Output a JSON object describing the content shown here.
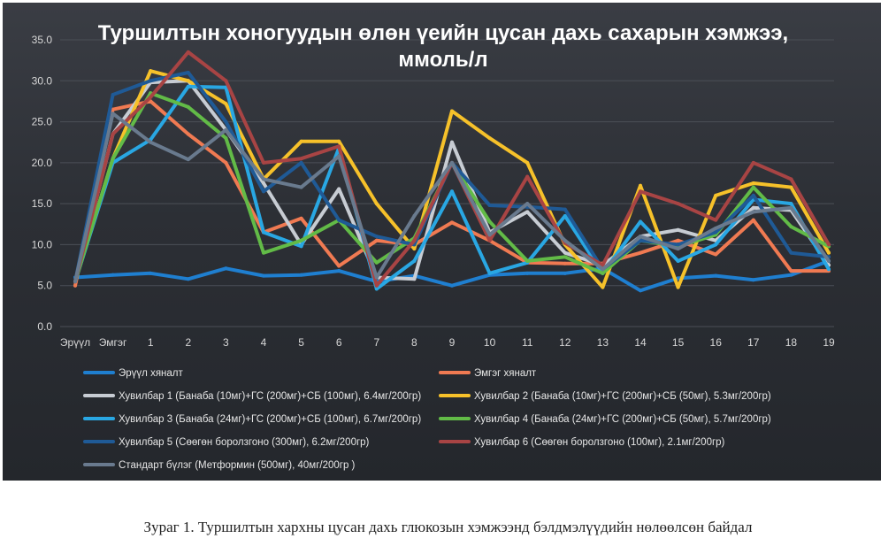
{
  "caption": "Зураг 1. Туршилтын хархны цусан дахь глюкозын хэмжээнд бэлдмэлүүдийн нөлөөлсөн байдал",
  "chart_data": {
    "type": "line",
    "title_line1": "Туршилтын хоногуудын өлөн үеийн цусан дахь сахарын хэмжээ,",
    "title_line2": "ммоль/л",
    "categories": [
      "Эрүүл",
      "Эмгэг",
      "1",
      "2",
      "3",
      "4",
      "5",
      "6",
      "7",
      "8",
      "9",
      "10",
      "11",
      "12",
      "13",
      "14",
      "15",
      "16",
      "17",
      "18",
      "19"
    ],
    "ylim": [
      0,
      35
    ],
    "yticks": [
      "0.0",
      "5.0",
      "10.0",
      "15.0",
      "20.0",
      "25.0",
      "30.0",
      "35.0"
    ],
    "grid": true,
    "legend_position": "bottom",
    "series": [
      {
        "name": "Эрүүл хяналт",
        "color": "#1f7fd0",
        "values": [
          6.0,
          6.3,
          6.5,
          5.8,
          7.1,
          6.2,
          6.3,
          6.8,
          5.5,
          6.2,
          5.0,
          6.3,
          6.5,
          6.5,
          7.1,
          4.4,
          5.9,
          6.2,
          5.7,
          6.3,
          8.0
        ]
      },
      {
        "name": "Эмгэг хяналт",
        "color": "#f07a52",
        "values": [
          5.0,
          26.5,
          27.5,
          23.5,
          20.0,
          11.5,
          13.2,
          7.4,
          10.5,
          10.0,
          12.7,
          10.5,
          7.8,
          7.7,
          7.7,
          9.0,
          10.5,
          8.8,
          13.0,
          6.8,
          6.8
        ]
      },
      {
        "name": "Хувилбар 1 (Банаба (10мг)+ГС (200мг)+СБ (100мг), 6.4мг/200гр)",
        "color": "#c7ccd3",
        "values": [
          5.5,
          23.5,
          29.8,
          30.0,
          24.0,
          17.5,
          10.0,
          16.8,
          6.0,
          5.8,
          22.5,
          11.5,
          14.0,
          9.0,
          7.5,
          11.0,
          11.8,
          10.5,
          14.5,
          14.2,
          7.5
        ]
      },
      {
        "name": "Хувилбар 2 (Банаба (10мг)+ГС (200мг)+СБ (50мг), 5.3мг/200гр)",
        "color": "#f6c12a",
        "values": [
          5.5,
          20.5,
          31.2,
          30.0,
          27.2,
          18.0,
          22.6,
          22.6,
          15.0,
          9.5,
          26.3,
          23.0,
          20.0,
          10.0,
          4.8,
          17.2,
          4.8,
          16.0,
          17.5,
          17.0,
          9.0
        ]
      },
      {
        "name": "Хувилбар 3 (Банаба (24мг)+ГС (200мг)+СБ (100мг), 6.7мг/200гр)",
        "color": "#29a7e3",
        "values": [
          5.5,
          20.0,
          22.8,
          29.3,
          29.2,
          11.5,
          9.8,
          21.8,
          4.6,
          8.0,
          16.5,
          6.5,
          7.8,
          13.5,
          6.5,
          12.8,
          8.0,
          10.0,
          15.5,
          15.0,
          7.0
        ]
      },
      {
        "name": "Хувилбар 4 (Банаба (24мг)+ГС (200мг)+СБ (50мг), 5.7мг/200гр)",
        "color": "#62bb47",
        "values": [
          5.5,
          20.5,
          28.5,
          26.8,
          23.0,
          9.0,
          10.5,
          13.0,
          7.8,
          10.8,
          20.0,
          12.8,
          8.0,
          8.5,
          6.5,
          10.5,
          9.8,
          11.2,
          17.0,
          12.2,
          9.8
        ]
      },
      {
        "name": "Хувилбар 5 (Сөөгөн боролзгоно (300мг), 6.2мг/200гр)",
        "color": "#1f5a96",
        "values": [
          5.5,
          28.3,
          30.0,
          31.0,
          25.0,
          16.5,
          20.0,
          13.0,
          11.0,
          10.0,
          20.0,
          14.8,
          14.6,
          14.3,
          7.0,
          10.5,
          10.0,
          11.5,
          16.0,
          9.0,
          8.5
        ]
      },
      {
        "name": "Хувилбар 6 (Сөөгөн боролзгоно (100мг), 2.1мг/200гр)",
        "color": "#a84444",
        "values": [
          5.5,
          23.5,
          28.0,
          33.5,
          30.0,
          20.0,
          20.5,
          22.0,
          5.0,
          10.5,
          20.0,
          10.5,
          18.3,
          10.2,
          7.5,
          16.5,
          15.0,
          13.0,
          20.0,
          18.0,
          10.0
        ]
      },
      {
        "name": "Стандарт бүлэг  (Метформин (500мг), 40мг/200гр )",
        "color": "#697a8e",
        "values": [
          5.5,
          26.0,
          22.5,
          20.4,
          24.0,
          18.0,
          17.0,
          20.8,
          6.0,
          13.5,
          20.0,
          11.2,
          15.0,
          10.5,
          7.0,
          11.0,
          9.5,
          12.0,
          14.0,
          14.5,
          8.0
        ]
      }
    ]
  }
}
